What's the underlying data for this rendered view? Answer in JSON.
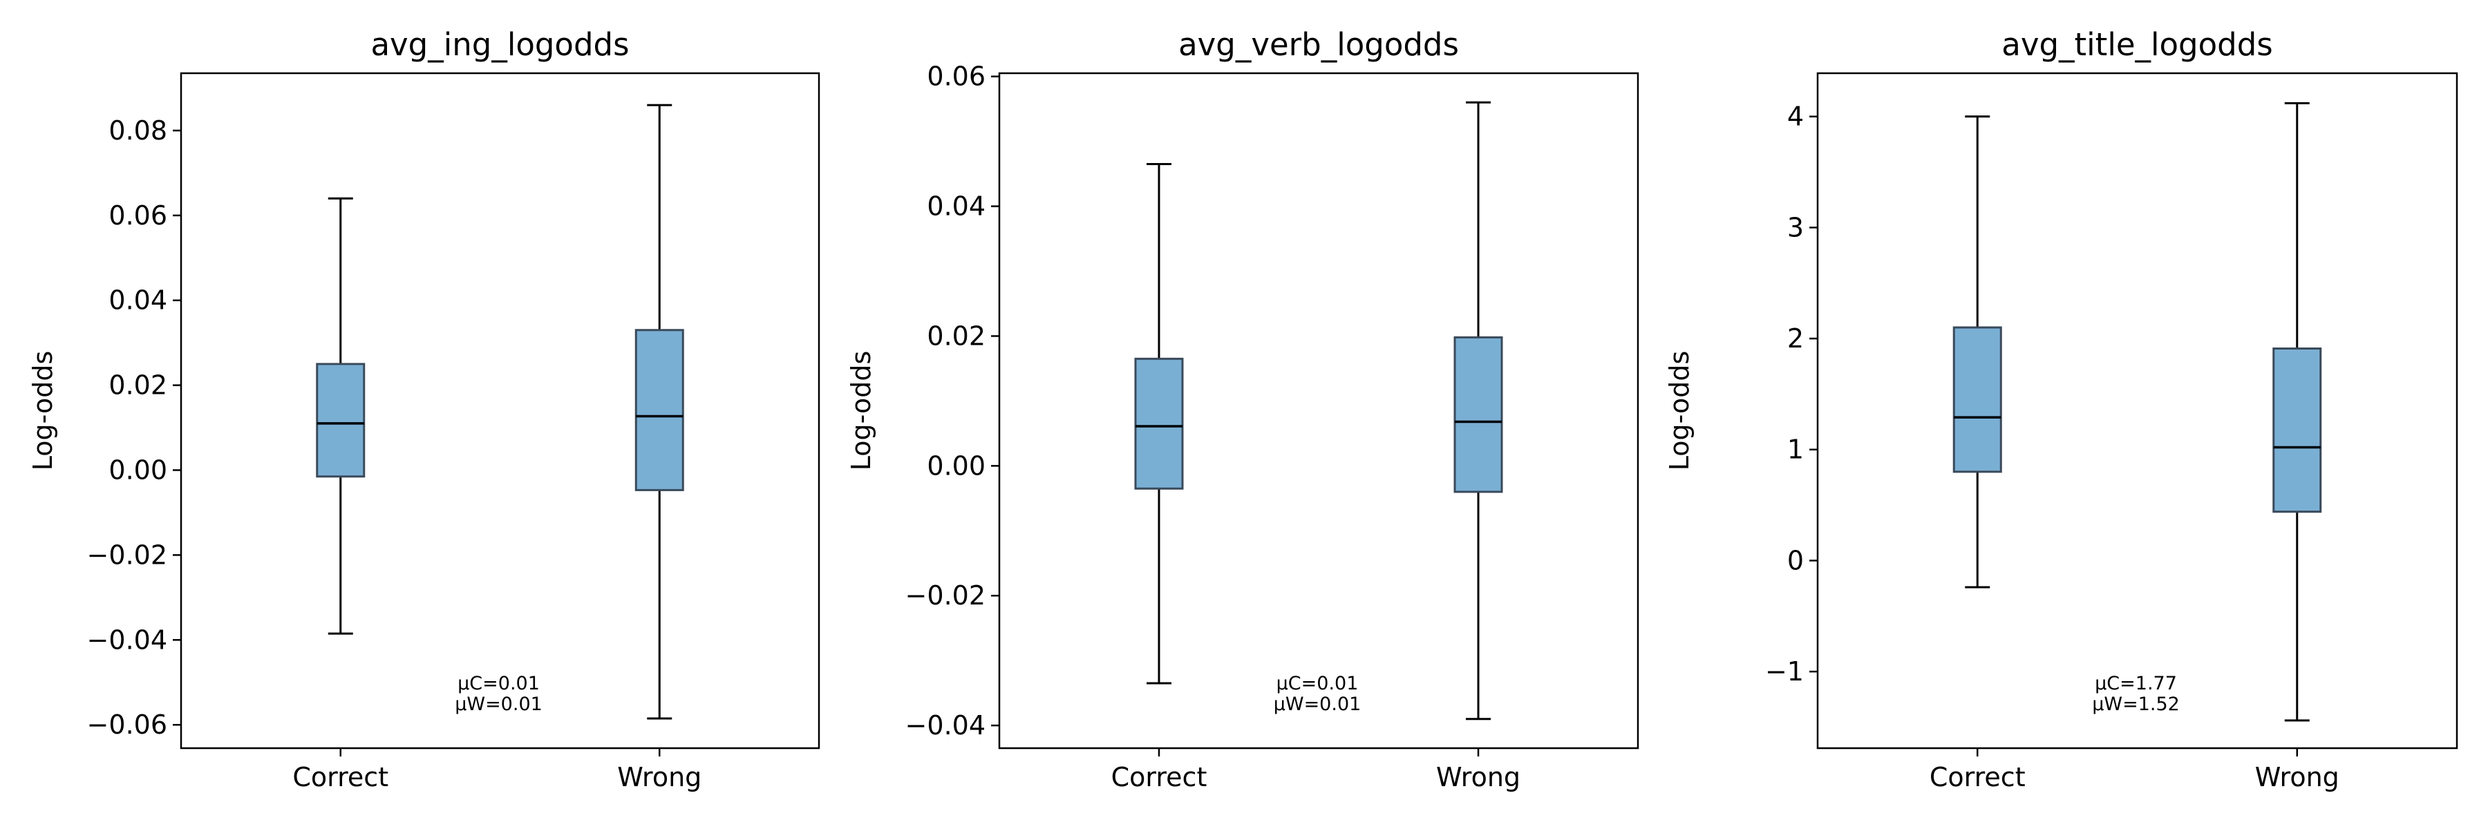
{
  "chart_data": [
    {
      "type": "box",
      "title": "avg_ing_logodds",
      "xlabel": "",
      "ylabel": "Log-odds",
      "ylim": [
        -0.0655,
        0.0935
      ],
      "yticks": [
        -0.06,
        -0.04,
        -0.02,
        0.0,
        0.02,
        0.04,
        0.06,
        0.08
      ],
      "ytick_labels": [
        "−0.06",
        "−0.04",
        "−0.02",
        "0.00",
        "0.02",
        "0.04",
        "0.06",
        "0.08"
      ],
      "categories": [
        "Correct",
        "Wrong"
      ],
      "boxes": [
        {
          "whisker_low": -0.0385,
          "q1": -0.0015,
          "median": 0.011,
          "q3": 0.025,
          "whisker_high": 0.064
        },
        {
          "whisker_low": -0.0585,
          "q1": -0.0047,
          "median": 0.0127,
          "q3": 0.033,
          "whisker_high": 0.086
        }
      ],
      "annotation": [
        "μC=0.01",
        "μW=0.01"
      ]
    },
    {
      "type": "box",
      "title": "avg_verb_logodds",
      "xlabel": "",
      "ylabel": "Log-odds",
      "ylim": [
        -0.0435,
        0.0605
      ],
      "yticks": [
        -0.04,
        -0.02,
        0.0,
        0.02,
        0.04,
        0.06
      ],
      "ytick_labels": [
        "−0.04",
        "−0.02",
        "0.00",
        "0.02",
        "0.04",
        "0.06"
      ],
      "categories": [
        "Correct",
        "Wrong"
      ],
      "boxes": [
        {
          "whisker_low": -0.0335,
          "q1": -0.0035,
          "median": 0.0061,
          "q3": 0.0165,
          "whisker_high": 0.0465
        },
        {
          "whisker_low": -0.039,
          "q1": -0.004,
          "median": 0.0068,
          "q3": 0.0198,
          "whisker_high": 0.056
        }
      ],
      "annotation": [
        "μC=0.01",
        "μW=0.01"
      ]
    },
    {
      "type": "box",
      "title": "avg_title_logodds",
      "xlabel": "",
      "ylabel": "Log-odds",
      "ylim": [
        -1.69,
        4.39
      ],
      "yticks": [
        -1,
        0,
        1,
        2,
        3,
        4
      ],
      "ytick_labels": [
        "−1",
        "0",
        "1",
        "2",
        "3",
        "4"
      ],
      "categories": [
        "Correct",
        "Wrong"
      ],
      "boxes": [
        {
          "whisker_low": -0.24,
          "q1": 0.8,
          "median": 1.29,
          "q3": 2.1,
          "whisker_high": 4.0
        },
        {
          "whisker_low": -1.44,
          "q1": 0.44,
          "median": 1.02,
          "q3": 1.91,
          "whisker_high": 4.12
        }
      ],
      "annotation": [
        "μC=1.77",
        "μW=1.52"
      ]
    }
  ],
  "colors": {
    "box_fill": "#7aafd4",
    "box_edge": "#3a4a5a",
    "median": "#000000",
    "whisker": "#000000",
    "axis": "#000000"
  }
}
